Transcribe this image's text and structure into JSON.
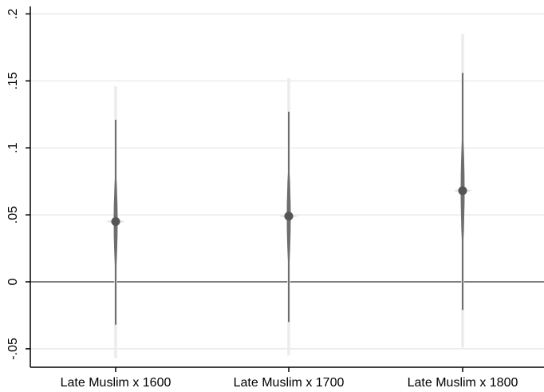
{
  "chart_data": {
    "type": "scatter",
    "title": "",
    "xlabel": "",
    "ylabel": "",
    "categories": [
      "Late Muslim x 1600",
      "Late Muslim x 1700",
      "Late Muslim x 1800"
    ],
    "ylim": [
      -0.06,
      0.2
    ],
    "yticks": [
      {
        "value": -0.05,
        "label": "-.05"
      },
      {
        "value": 0,
        "label": "0"
      },
      {
        "value": 0.05,
        "label": ".05"
      },
      {
        "value": 0.1,
        "label": ".1"
      },
      {
        "value": 0.15,
        "label": ".15"
      },
      {
        "value": 0.2,
        "label": ".2"
      }
    ],
    "grid": true,
    "reference_line": 0,
    "estimates": [
      {
        "category": "Late Muslim x 1600",
        "point": 0.045,
        "ci_inner": [
          -0.032,
          0.121
        ],
        "ci_outer": [
          -0.057,
          0.146
        ]
      },
      {
        "category": "Late Muslim x 1700",
        "point": 0.049,
        "ci_inner": [
          -0.03,
          0.127
        ],
        "ci_outer": [
          -0.055,
          0.152
        ]
      },
      {
        "category": "Late Muslim x 1800",
        "point": 0.068,
        "ci_inner": [
          -0.021,
          0.156
        ],
        "ci_outer": [
          -0.049,
          0.185
        ]
      }
    ],
    "colors": {
      "outer_ci": "#ececec",
      "inner_ci": "#6e6e6e",
      "point": "#555555",
      "grid": "#e6e6e6",
      "axis": "#000000",
      "zero_line": "#555555"
    }
  }
}
